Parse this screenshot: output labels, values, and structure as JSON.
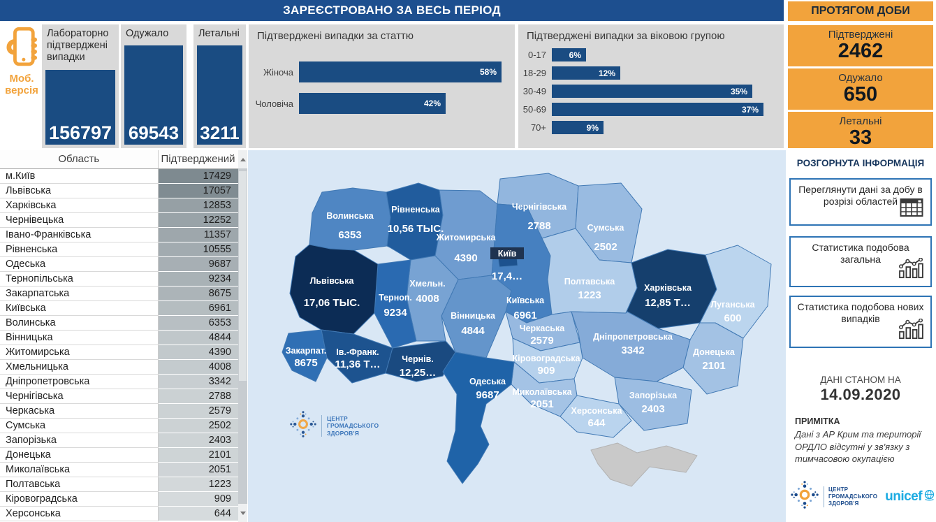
{
  "header": {
    "title": "ЗАРЕЄСТРОВАНО ЗА ВЕСЬ ПЕРІОД"
  },
  "daily": {
    "title": "ПРОТЯГОМ ДОБИ",
    "cards": [
      {
        "label": "Підтверджені",
        "value": "2462"
      },
      {
        "label": "Одужало",
        "value": "650"
      },
      {
        "label": "Летальні",
        "value": "33"
      }
    ]
  },
  "mobile": {
    "label": "Моб. версія"
  },
  "totals": [
    {
      "label": "Лабораторно підтверджені випадки",
      "value": "156797"
    },
    {
      "label": "Одужало",
      "value": "69543"
    },
    {
      "label": "Летальні",
      "value": "3211"
    }
  ],
  "gender_chart": {
    "type": "bar",
    "title": "Підтверджені випадки за статтю",
    "items": [
      {
        "label": "Жіноча",
        "pct": 58
      },
      {
        "label": "Чоловіча",
        "pct": 42
      }
    ]
  },
  "age_chart": {
    "type": "bar",
    "title": "Підтверджені випадки за віковою групою",
    "items": [
      {
        "label": "0-17",
        "pct": 6
      },
      {
        "label": "18-29",
        "pct": 12
      },
      {
        "label": "30-49",
        "pct": 35
      },
      {
        "label": "50-69",
        "pct": 37
      },
      {
        "label": "70+",
        "pct": 9
      }
    ]
  },
  "table": {
    "columns": [
      "Область",
      "Підтверджений"
    ],
    "rows": [
      [
        "м.Київ",
        17429
      ],
      [
        "Львівська",
        17057
      ],
      [
        "Харківська",
        12853
      ],
      [
        "Чернівецька",
        12252
      ],
      [
        "Івано-Франківська",
        11357
      ],
      [
        "Рівненська",
        10555
      ],
      [
        "Одеська",
        9687
      ],
      [
        "Тернопільська",
        9234
      ],
      [
        "Закарпатська",
        8675
      ],
      [
        "Київська",
        6961
      ],
      [
        "Волинська",
        6353
      ],
      [
        "Вінницька",
        4844
      ],
      [
        "Житомирська",
        4390
      ],
      [
        "Хмельницька",
        4008
      ],
      [
        "Дніпропетровська",
        3342
      ],
      [
        "Чернігівська",
        2788
      ],
      [
        "Черкаська",
        2579
      ],
      [
        "Сумська",
        2502
      ],
      [
        "Запорізька",
        2403
      ],
      [
        "Донецька",
        2101
      ],
      [
        "Миколаївська",
        2051
      ],
      [
        "Полтавська",
        1223
      ],
      [
        "Кіровоградська",
        909
      ],
      [
        "Херсонська",
        644
      ]
    ],
    "shade_min": "#d6dbdd",
    "shade_max": "#7e8a90"
  },
  "map": {
    "regions": [
      {
        "id": "volyn",
        "name": "Волинська",
        "value": "6353",
        "color": "#4f86c3"
      },
      {
        "id": "rivne",
        "name": "Рівненська",
        "value": "10,56 ТЫС.",
        "color": "#215c9d"
      },
      {
        "id": "zhytomyr",
        "name": "Житомирська",
        "value": "4390",
        "color": "#6f9cd0"
      },
      {
        "id": "chernihiv",
        "name": "Чернігівська",
        "value": "2788",
        "color": "#92b6de"
      },
      {
        "id": "sumy",
        "name": "Сумська",
        "value": "2502",
        "color": "#99bbe1"
      },
      {
        "id": "kyiv_obl",
        "name": "Київська",
        "value": "6961",
        "color": "#4680c0"
      },
      {
        "id": "kyiv_city",
        "name": "Київ",
        "value": "17,4…",
        "color": "#1d528e",
        "boxed": true
      },
      {
        "id": "poltava",
        "name": "Полтавська",
        "value": "1223",
        "color": "#b1cdea"
      },
      {
        "id": "kharkiv",
        "name": "Харківська",
        "value": "12,85 Т…",
        "color": "#153f6d"
      },
      {
        "id": "luhansk",
        "name": "Луганська",
        "value": "600",
        "color": "#bbd5ee"
      },
      {
        "id": "donetsk",
        "name": "Донецька",
        "value": "2101",
        "color": "#a3c2e4"
      },
      {
        "id": "dnipro",
        "name": "Дніпропетровська",
        "value": "3342",
        "color": "#85abd8"
      },
      {
        "id": "zaporizhzhia",
        "name": "Запорізька",
        "value": "2403",
        "color": "#9cbde2"
      },
      {
        "id": "cherkasy",
        "name": "Черкаська",
        "value": "2579",
        "color": "#97b9e0"
      },
      {
        "id": "kirovohrad",
        "name": "Кіровоградська",
        "value": "909",
        "color": "#b6d1ec"
      },
      {
        "id": "mykolaiv",
        "name": "Миколаївська",
        "value": "2051",
        "color": "#a4c3e5"
      },
      {
        "id": "kherson",
        "name": "Херсонська",
        "value": "644",
        "color": "#bad4ee"
      },
      {
        "id": "odesa",
        "name": "Одеська",
        "value": "9687",
        "color": "#1f63a8"
      },
      {
        "id": "vinnytsia",
        "name": "Вінницька",
        "value": "4844",
        "color": "#6495cb"
      },
      {
        "id": "khmelnytskyi",
        "name": "Хмельн.",
        "value": "4008",
        "color": "#78a3d3"
      },
      {
        "id": "ternopil",
        "name": "Терноп.",
        "value": "9234",
        "color": "#2a6ab1"
      },
      {
        "id": "lviv",
        "name": "Львівська",
        "value": "17,06 ТЫС.",
        "color": "#0c2c55"
      },
      {
        "id": "ivfrank",
        "name": "Ів.-Франк.",
        "value": "11,36 Т…",
        "color": "#1d538f"
      },
      {
        "id": "zakarpattia",
        "name": "Закарпат.",
        "value": "8675",
        "color": "#2f6fb4"
      },
      {
        "id": "chernivtsi",
        "name": "Чернів.",
        "value": "12,25…",
        "color": "#1a4a80"
      },
      {
        "id": "crimea",
        "name": "",
        "value": "",
        "color": "#c9c9c9"
      }
    ]
  },
  "expanded": {
    "heading": "РОЗГОРНУТА ІНФОРМАЦІЯ",
    "buttons": [
      {
        "label": "Переглянути дані за добу в розрізі областей",
        "icon": "table"
      },
      {
        "label": "Статистика подобова загальна",
        "icon": "chart"
      },
      {
        "label": "Статистика подобова нових випадків",
        "icon": "chart"
      }
    ]
  },
  "date": {
    "caption": "ДАНІ СТАНОМ НА",
    "value": "14.09.2020"
  },
  "note": {
    "heading": "ПРИМІТКА",
    "body": "Дані з АР Крим та території ОРДЛО відсутні у зв'язку з тимчасовою окупацією"
  },
  "brand": {
    "name_lines": [
      "ЦЕНТР",
      "ГРОМАДСЬКОГО",
      "ЗДОРОВ'Я"
    ],
    "unicef": "unicef"
  }
}
